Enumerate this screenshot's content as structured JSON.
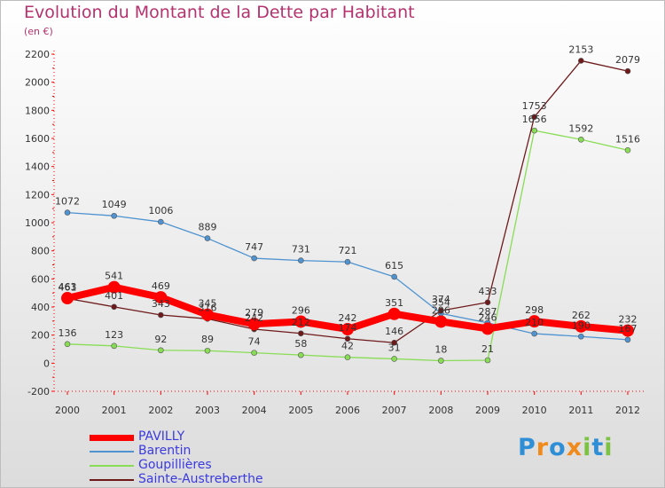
{
  "title": "Evolution du Montant de la Dette par Habitant",
  "subtitle": "(en €)",
  "chart_data": {
    "type": "line",
    "title": "Evolution du Montant de la Dette par Habitant",
    "ylabel": "(en €)",
    "ylim": [
      -200,
      2200
    ],
    "yticks": [
      -200,
      0,
      200,
      400,
      600,
      800,
      1000,
      1200,
      1400,
      1600,
      1800,
      2000,
      2200
    ],
    "x": [
      "2000",
      "2001",
      "2002",
      "2003",
      "2004",
      "2005",
      "2006",
      "2007",
      "2008",
      "2009",
      "2010",
      "2011",
      "2012"
    ],
    "grid": false,
    "legend_position": "bottom-left",
    "series": [
      {
        "name": "PAVILLY",
        "color": "#ff0000",
        "values": [
          463,
          541,
          469,
          345,
          279,
          296,
          242,
          351,
          296,
          246,
          298,
          262,
          232
        ]
      },
      {
        "name": "Barentin",
        "color": "#4f93d0",
        "values": [
          1072,
          1049,
          1006,
          889,
          747,
          731,
          721,
          615,
          354,
          287,
          210,
          190,
          167
        ]
      },
      {
        "name": "Goupillières",
        "color": "#88dd55",
        "values": [
          136,
          123,
          92,
          89,
          74,
          58,
          42,
          31,
          18,
          21,
          1656,
          1592,
          1516
        ]
      },
      {
        "name": "Sainte-Austreberthe",
        "color": "#6e1a1a",
        "values": [
          461,
          401,
          343,
          316,
          242,
          212,
          174,
          146,
          374,
          433,
          1753,
          2153,
          2079
        ]
      }
    ]
  },
  "logo": {
    "letters": [
      {
        "ch": "P",
        "color": "#2f8fd6"
      },
      {
        "ch": "r",
        "color": "#f08a1c"
      },
      {
        "ch": "o",
        "color": "#2f8fd6"
      },
      {
        "ch": "x",
        "color": "#f08a1c"
      },
      {
        "ch": "i",
        "color": "#7cc243"
      },
      {
        "ch": "t",
        "color": "#2f8fd6"
      },
      {
        "ch": "i",
        "color": "#7cc243"
      }
    ]
  }
}
